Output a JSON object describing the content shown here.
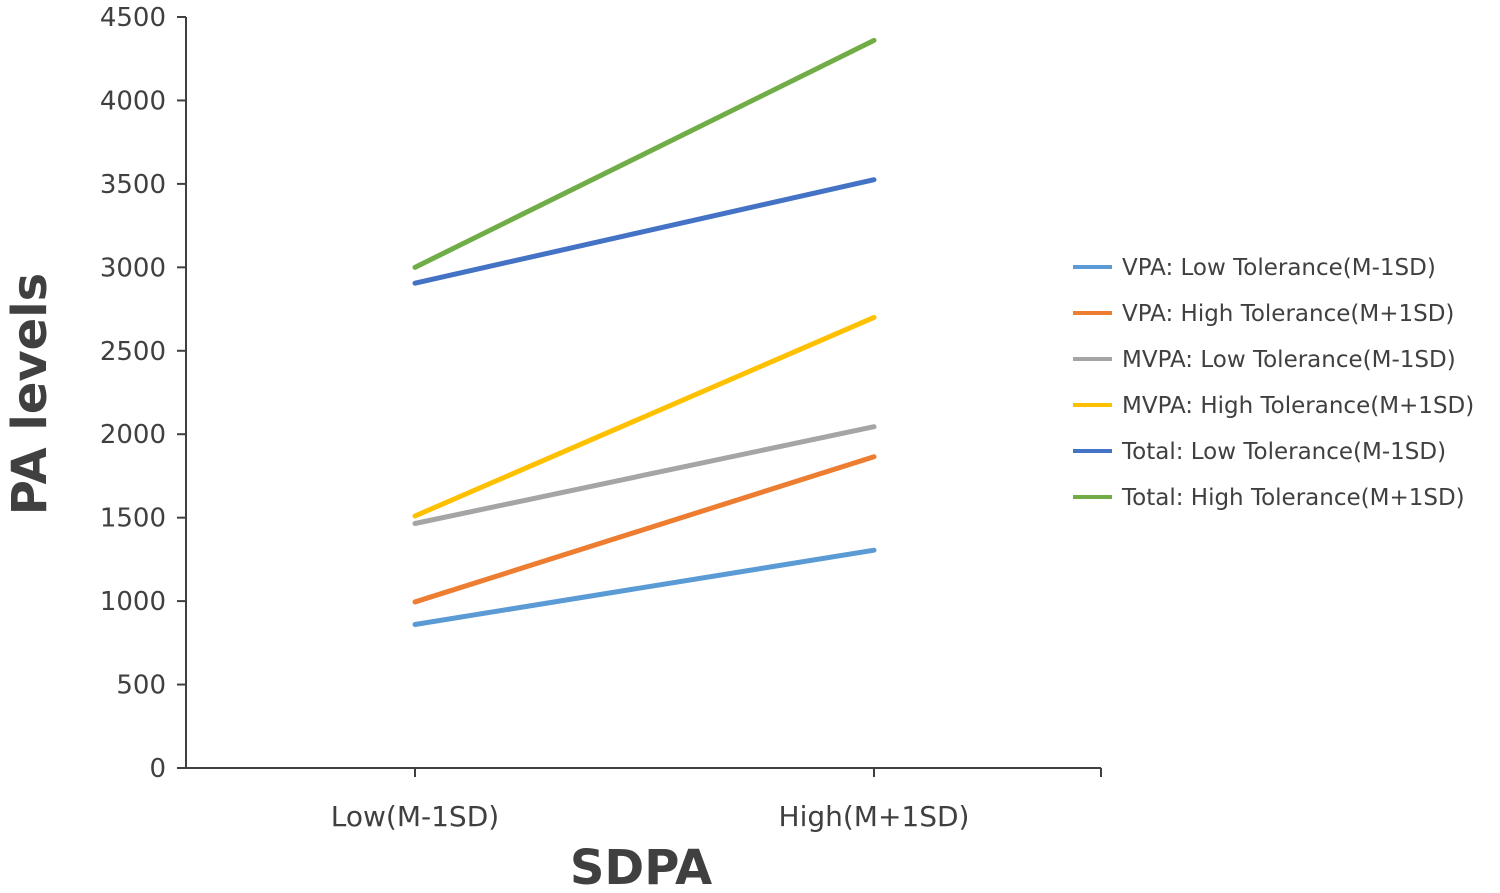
{
  "chart_data": {
    "type": "line",
    "title": "",
    "xlabel": "SDPA",
    "ylabel": "PA levels",
    "categories": [
      "Low(M-1SD)",
      "High(M+1SD)"
    ],
    "ylim": [
      0,
      4500
    ],
    "yticks": [
      0,
      500,
      1000,
      1500,
      2000,
      2500,
      3000,
      3500,
      4000,
      4500
    ],
    "grid": false,
    "legend_position": "right",
    "series": [
      {
        "name": "VPA: Low Tolerance(M-1SD)",
        "values": [
          860,
          1305
        ],
        "color": "#5b9bd5"
      },
      {
        "name": "VPA: High Tolerance(M+1SD)",
        "values": [
          995,
          1865
        ],
        "color": "#ed7d31"
      },
      {
        "name": "MVPA: Low Tolerance(M-1SD)",
        "values": [
          1465,
          2045
        ],
        "color": "#a5a5a5"
      },
      {
        "name": "MVPA: High Tolerance(M+1SD)",
        "values": [
          1510,
          2700
        ],
        "color": "#ffc000"
      },
      {
        "name": "Total: Low Tolerance(M-1SD)",
        "values": [
          2905,
          3525
        ],
        "color": "#4472c4"
      },
      {
        "name": "Total: High Tolerance(M+1SD)",
        "values": [
          3000,
          4360
        ],
        "color": "#70ad47"
      }
    ]
  }
}
